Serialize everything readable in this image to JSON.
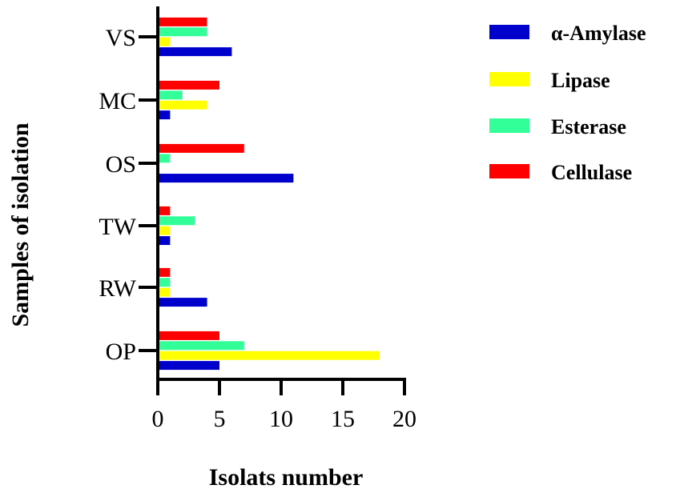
{
  "chart_data": {
    "type": "bar",
    "orientation": "horizontal",
    "title": "",
    "xlabel": "Isolats number",
    "ylabel": "Samples of isolation",
    "xlim": [
      0,
      20
    ],
    "xticks": [
      "0",
      "5",
      "10",
      "15",
      "20"
    ],
    "categories": [
      "VS",
      "MC",
      "OS",
      "TW",
      "RW",
      "OP"
    ],
    "legend_position": "right",
    "grid": false,
    "series": [
      {
        "name": "α-Amylase",
        "color": "#0000CC",
        "values": [
          6,
          1,
          11,
          1,
          4,
          5
        ]
      },
      {
        "name": "Lipase",
        "color": "#FFFF00",
        "values": [
          1,
          4,
          0,
          1,
          1,
          18
        ]
      },
      {
        "name": "Esterase",
        "color": "#33FF99",
        "values": [
          4,
          2,
          1,
          3,
          1,
          7
        ]
      },
      {
        "name": "Cellulase",
        "color": "#FF0000",
        "values": [
          4,
          5,
          7,
          1,
          1,
          5
        ]
      }
    ]
  }
}
